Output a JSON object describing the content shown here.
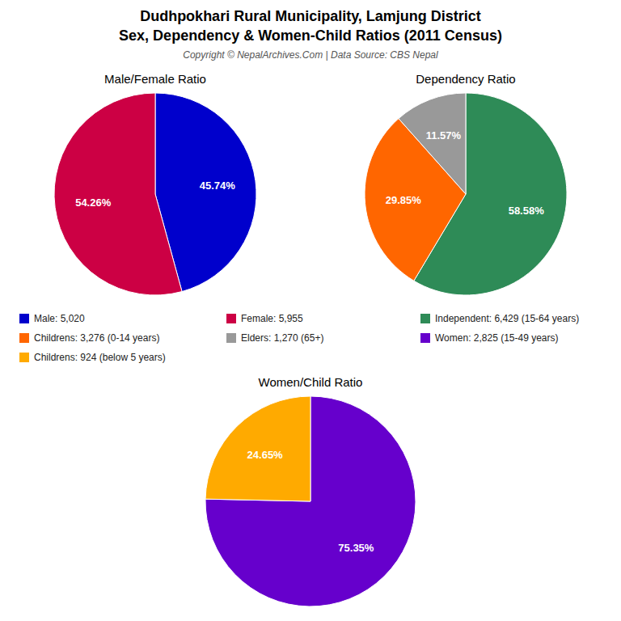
{
  "title": "Dudhpokhari Rural Municipality, Lamjung District",
  "subtitle": "Sex, Dependency & Women-Child Ratios (2011 Census)",
  "annotations": [
    "Copyright © NepalArchives.Com | Data Source: CBS Nepal"
  ],
  "chart_data": [
    {
      "type": "pie",
      "title": "Male/Female Ratio",
      "categories": [
        "Male: 5,020",
        "Female: 5,955"
      ],
      "values": [
        45.74,
        54.26
      ],
      "value_labels": [
        "45.74%",
        "54.26%"
      ],
      "colors": [
        "#0000cc",
        "#cc0044"
      ],
      "data_labels": true,
      "legend": "bottom"
    },
    {
      "type": "pie",
      "title": "Dependency Ratio",
      "categories": [
        "Independent: 6,429 (15-64 years)",
        "Childrens: 3,276 (0-14 years)",
        "Elders: 1,270 (65+)"
      ],
      "values": [
        58.58,
        29.85,
        11.57
      ],
      "value_labels": [
        "58.58%",
        "29.85%",
        "11.57%"
      ],
      "colors": [
        "#2e8b57",
        "#ff6600",
        "#999999"
      ],
      "data_labels": true,
      "legend": "bottom"
    },
    {
      "type": "pie",
      "title": "Women/Child Ratio",
      "categories": [
        "Women: 2,825 (15-49 years)",
        "Childrens: 924 (below 5 years)"
      ],
      "values": [
        75.35,
        24.65
      ],
      "value_labels": [
        "75.35%",
        "24.65%"
      ],
      "colors": [
        "#6600cc",
        "#ffaa00"
      ],
      "data_labels": true,
      "legend": "top"
    }
  ]
}
